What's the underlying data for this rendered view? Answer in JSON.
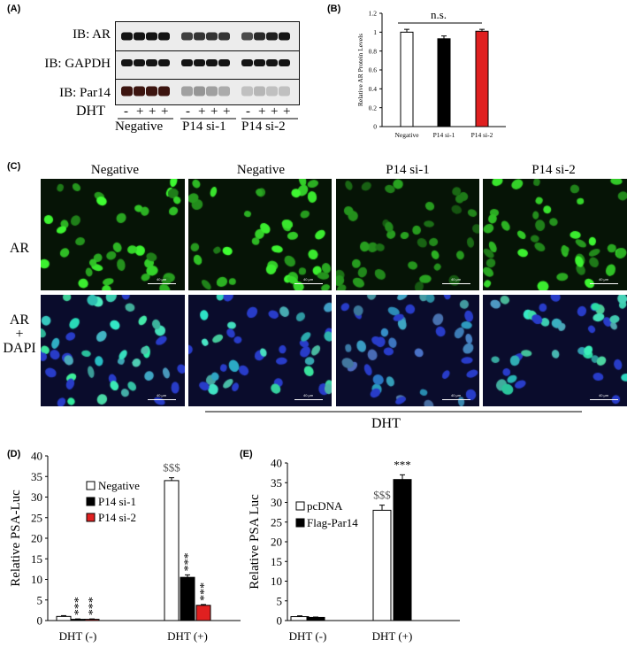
{
  "panels": {
    "A": {
      "letter": "(A)",
      "blots": [
        {
          "label": "IB: AR"
        },
        {
          "label": "IB: GAPDH"
        },
        {
          "label": "IB: Par14"
        }
      ],
      "dht_label": "DHT",
      "dht_signs": [
        "-",
        "+",
        "+",
        "+",
        "-",
        "+",
        "+",
        "+",
        "-",
        "+",
        "+",
        "+"
      ],
      "groups": [
        "Negative",
        "P14 si-1",
        "P14 si-2"
      ]
    },
    "B": {
      "letter": "(B)"
    },
    "C": {
      "letter": "(C)",
      "columns": [
        "Negative",
        "Negative",
        "P14 si-1",
        "P14 si-2"
      ],
      "rows": [
        "AR",
        "AR\n+\nDAPI"
      ],
      "scale_text": "40 μm",
      "dht_label": "DHT"
    },
    "D": {
      "letter": "(D)"
    },
    "E": {
      "letter": "(E)"
    }
  },
  "colors": {
    "green": "#3ec03e",
    "blue": "#2a3ab0",
    "red": "#e02020",
    "black": "#000000"
  },
  "chart_data": [
    {
      "id": "B",
      "type": "bar",
      "categories": [
        "Negative",
        "P14 si-1",
        "P14 si-2"
      ],
      "values": [
        1.0,
        0.93,
        1.01
      ],
      "errors": [
        0.03,
        0.03,
        0.02
      ],
      "colors": [
        "#ffffff",
        "#000000",
        "#e02020"
      ],
      "ylabel": "Relative AR Protein Levels",
      "ylim": [
        0,
        1.2
      ],
      "yticks": [
        "0",
        "0.2",
        "0.4",
        "0.6",
        "0.8",
        "1",
        "1.2"
      ],
      "annotation": "n.s."
    },
    {
      "id": "D",
      "type": "bar",
      "categories": [
        "DHT (-)",
        "DHT (+)"
      ],
      "series": [
        {
          "name": "Negative",
          "values": [
            1.0,
            34.0
          ],
          "errors": [
            0.2,
            0.7
          ],
          "color": "#ffffff"
        },
        {
          "name": "P14 si-1",
          "values": [
            0.3,
            10.5
          ],
          "errors": [
            0.1,
            0.6
          ],
          "color": "#000000"
        },
        {
          "name": "P14 si-2",
          "values": [
            0.3,
            3.7
          ],
          "errors": [
            0.1,
            0.2
          ],
          "color": "#e02020"
        }
      ],
      "ylabel": "Relative PSA-Luc",
      "ylim": [
        0,
        40
      ],
      "yticks": [
        "0",
        "5",
        "10",
        "15",
        "20",
        "25",
        "30",
        "35",
        "40"
      ],
      "annotations": {
        "sig": "***",
        "dollar": "$$$"
      }
    },
    {
      "id": "E",
      "type": "bar",
      "categories": [
        "DHT (-)",
        "DHT (+)"
      ],
      "series": [
        {
          "name": "pcDNA",
          "values": [
            1.0,
            28.0
          ],
          "errors": [
            0.2,
            1.3
          ],
          "color": "#ffffff"
        },
        {
          "name": "Flag-Par14",
          "values": [
            0.8,
            35.8
          ],
          "errors": [
            0.1,
            1.2
          ],
          "color": "#000000"
        }
      ],
      "ylabel": "Relative PSA Luc",
      "ylim": [
        0,
        40
      ],
      "yticks": [
        "0",
        "5",
        "10",
        "15",
        "20",
        "25",
        "30",
        "35",
        "40"
      ],
      "annotations": {
        "sig": "***",
        "dollar": "$$$"
      }
    }
  ]
}
